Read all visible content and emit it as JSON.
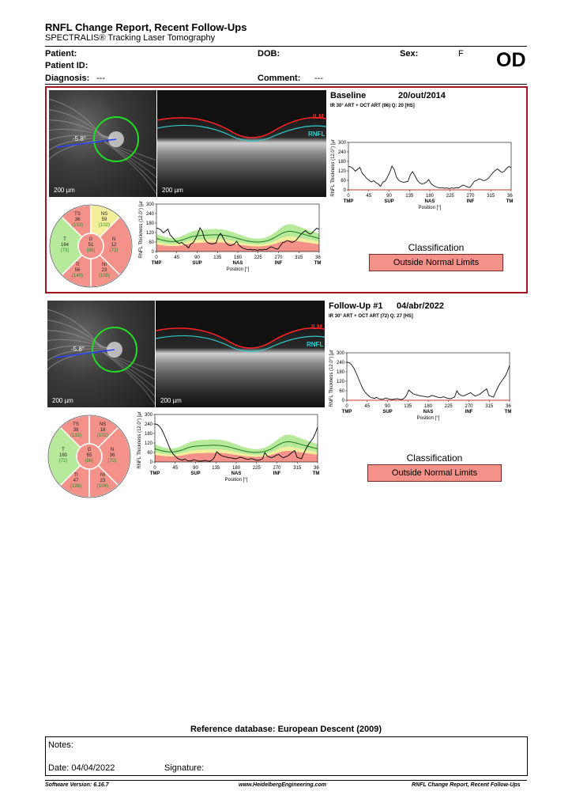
{
  "report": {
    "title": "RNFL Change Report, Recent Follow-Ups",
    "subtitle": "SPECTRALIS® Tracking Laser Tomography",
    "eye": "OD"
  },
  "patient": {
    "patient_label": "Patient:",
    "patient_value": "",
    "dob_label": "DOB:",
    "dob_value": "",
    "sex_label": "Sex:",
    "sex_value": "F",
    "id_label": "Patient ID:",
    "id_value": "",
    "diagnosis_label": "Diagnosis:",
    "diagnosis_value": "---",
    "comment_label": "Comment:",
    "comment_value": "---"
  },
  "layer_labels": {
    "ilm": "ILM",
    "rnfl": "RNFL"
  },
  "visits": [
    {
      "name": "Baseline",
      "date": "20/out/2014",
      "acq": "IR 30° ART + OCT ART (96) Q: 20 [HS]",
      "scale_fundus": "200 µm",
      "scale_oct": "200 µm",
      "angle": "-5.8°",
      "classification_label": "Classification",
      "classification": "Outside Normal Limits",
      "sectors": {
        "TS": {
          "label": "TS",
          "value": "36",
          "normal": "(133)",
          "color": "#f4928a"
        },
        "NS": {
          "label": "NS",
          "value": "59",
          "normal": "(102)",
          "color": "#f3ee9a"
        },
        "N": {
          "label": "N",
          "value": "12",
          "normal": "(72)",
          "color": "#f4928a"
        },
        "NI": {
          "label": "NI",
          "value": "23",
          "normal": "(105)",
          "color": "#f4928a"
        },
        "TI": {
          "label": "TI",
          "value": "56",
          "normal": "(140)",
          "color": "#f4928a"
        },
        "T": {
          "label": "T",
          "value": "164",
          "normal": "(73)",
          "color": "#b6e99a"
        },
        "G": {
          "label": "G",
          "value": "51",
          "normal": "(96)",
          "color": "#f4928a"
        }
      },
      "profile": [
        148,
        145,
        135,
        118,
        130,
        142,
        105,
        90,
        72,
        60,
        50,
        58,
        45,
        38,
        22,
        48,
        55,
        80,
        110,
        150,
        128,
        80,
        60,
        52,
        48,
        50,
        54,
        95,
        115,
        90,
        62,
        45,
        38,
        40,
        48,
        65,
        40,
        28,
        20,
        15,
        12,
        14,
        10,
        12,
        8,
        12,
        10,
        14,
        12,
        22,
        30,
        25,
        18,
        15,
        35,
        55,
        60,
        70,
        65,
        58,
        62,
        72,
        90,
        108,
        122,
        132,
        120,
        110,
        118,
        135,
        148,
        140
      ]
    },
    {
      "name": "Follow-Up #1",
      "date": "04/abr/2022",
      "acq": "IR 30° ART + OCT ART (72) Q: 27 [HS]",
      "scale_fundus": "200 µm",
      "scale_oct": "200 µm",
      "angle": "-5.8°",
      "classification_label": "Classification",
      "classification": "Outside Normal Limits",
      "sectors": {
        "TS": {
          "label": "TS",
          "value": "38",
          "normal": "(133)",
          "color": "#f4928a"
        },
        "NS": {
          "label": "NS",
          "value": "18",
          "normal": "(102)",
          "color": "#f4928a"
        },
        "N": {
          "label": "N",
          "value": "36",
          "normal": "(72)",
          "color": "#f4928a"
        },
        "NI": {
          "label": "NI",
          "value": "23",
          "normal": "(104)",
          "color": "#f4928a"
        },
        "TI": {
          "label": "TI",
          "value": "47",
          "normal": "(138)",
          "color": "#f4928a"
        },
        "T": {
          "label": "T",
          "value": "160",
          "normal": "(72)",
          "color": "#b6e99a"
        },
        "G": {
          "label": "G",
          "value": "65",
          "normal": "(96)",
          "color": "#f4928a"
        }
      },
      "profile": [
        240,
        238,
        225,
        205,
        175,
        140,
        105,
        72,
        50,
        35,
        22,
        15,
        12,
        18,
        10,
        6,
        8,
        14,
        10,
        6,
        5,
        8,
        10,
        6,
        5,
        12,
        30,
        65,
        52,
        40,
        35,
        32,
        28,
        26,
        24,
        20,
        22,
        30,
        28,
        22,
        18,
        16,
        22,
        18,
        12,
        10,
        14,
        20,
        60,
        38,
        30,
        28,
        34,
        42,
        48,
        36,
        26,
        32,
        38,
        50,
        62,
        72,
        30,
        25,
        20,
        55,
        85,
        110,
        130,
        150,
        180,
        220
      ]
    }
  ],
  "axes": {
    "ylabel": "RNFL Thickness (12.0°) [µm]",
    "xlabel": "Position [°]",
    "y_ticks": [
      "0",
      "60",
      "120",
      "180",
      "240",
      "300"
    ],
    "x_ticks": [
      "0",
      "45",
      "90",
      "135",
      "180",
      "225",
      "270",
      "315",
      "360"
    ],
    "sector_ticks": [
      "TMP",
      "SUP",
      "NAS",
      "INF",
      "TMP"
    ]
  },
  "footer": {
    "reference": "Reference database: European Descent (2009)",
    "notes_label": "Notes:",
    "date_label": "Date: 04/04/2022",
    "signature_label": "Signature:",
    "software": "Software Version: 6.16.7",
    "website": "www.HeidelbergEngineering.com",
    "report_name": "RNFL Change Report, Recent Follow-Ups"
  },
  "colors": {
    "border_red": "#a3151b",
    "normal_green": "#b6e99a",
    "borderline_yellow": "#f3ee9a",
    "outside_red": "#f4928a"
  }
}
